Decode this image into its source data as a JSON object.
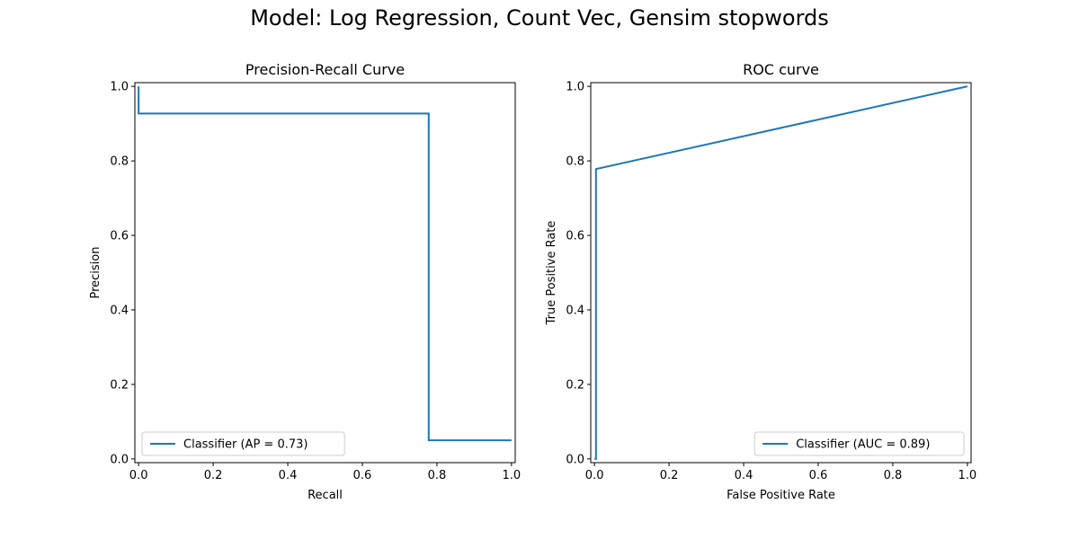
{
  "figure_title": "Model: Log Regression, Count Vec, Gensim stopwords",
  "chart_data": [
    {
      "type": "line",
      "title": "Precision-Recall Curve",
      "xlabel": "Recall",
      "ylabel": "Precision",
      "xlim": [
        -0.01,
        1.01
      ],
      "ylim": [
        -0.01,
        1.01
      ],
      "xticks": [
        0.0,
        0.2,
        0.4,
        0.6,
        0.8,
        1.0
      ],
      "yticks": [
        0.0,
        0.2,
        0.4,
        0.6,
        0.8,
        1.0
      ],
      "xtick_labels": [
        "0.0",
        "0.2",
        "0.4",
        "0.6",
        "0.8",
        "1.0"
      ],
      "ytick_labels": [
        "0.0",
        "0.2",
        "0.4",
        "0.6",
        "0.8",
        "1.0"
      ],
      "grid": false,
      "legend_position": "lower-left",
      "series": [
        {
          "name": "Classifier (AP = 0.73)",
          "color": "#1f77b4",
          "drawstyle": "steps",
          "x": [
            0.0,
            0.0,
            0.778,
            0.778,
            1.0
          ],
          "y": [
            1.0,
            0.927,
            0.927,
            0.05,
            0.05
          ]
        }
      ]
    },
    {
      "type": "line",
      "title": "ROC curve",
      "xlabel": "False Positive Rate",
      "ylabel": "True Positive Rate",
      "xlim": [
        -0.01,
        1.01
      ],
      "ylim": [
        -0.01,
        1.01
      ],
      "xticks": [
        0.0,
        0.2,
        0.4,
        0.6,
        0.8,
        1.0
      ],
      "yticks": [
        0.0,
        0.2,
        0.4,
        0.6,
        0.8,
        1.0
      ],
      "xtick_labels": [
        "0.0",
        "0.2",
        "0.4",
        "0.6",
        "0.8",
        "1.0"
      ],
      "ytick_labels": [
        "0.0",
        "0.2",
        "0.4",
        "0.6",
        "0.8",
        "1.0"
      ],
      "grid": false,
      "legend_position": "lower-right",
      "series": [
        {
          "name": "Classifier (AUC = 0.89)",
          "color": "#1f77b4",
          "x": [
            0.0,
            0.004,
            0.004,
            1.0
          ],
          "y": [
            0.0,
            0.0,
            0.778,
            1.0
          ]
        }
      ]
    }
  ]
}
